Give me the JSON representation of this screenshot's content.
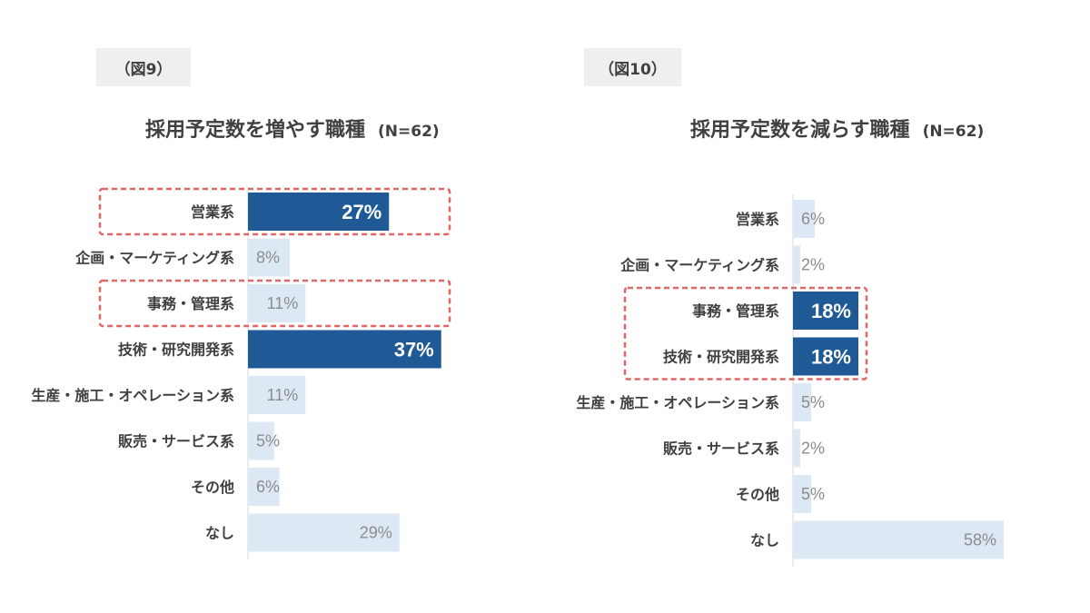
{
  "figures": [
    {
      "tag": "（図9）",
      "title": "採用予定数を増やす職種",
      "n_label": "(N=62)"
    },
    {
      "tag": "（図10）",
      "title": "採用予定数を減らす職種",
      "n_label": "(N=62)"
    }
  ],
  "colors": {
    "highlight": "#1f5a97",
    "normal": "#dde8f5",
    "callout": "#e06666",
    "label_dark": "#ffffff",
    "label_light": "#8c8c8c"
  },
  "chart_data": [
    {
      "type": "bar",
      "orientation": "horizontal",
      "title": "採用予定数を増やす職種",
      "categories": [
        "営業系",
        "企画・マーケティング系",
        "事務・管理系",
        "技術・研究開発系",
        "生産・施工・オペレーション系",
        "販売・サービス系",
        "その他",
        "なし"
      ],
      "values": [
        27,
        8,
        11,
        37,
        11,
        5,
        6,
        29
      ],
      "value_labels": [
        "27%",
        "8%",
        "11%",
        "37%",
        "11%",
        "5%",
        "6%",
        "29%"
      ],
      "highlighted": [
        0,
        3
      ],
      "callouts": [
        0,
        2
      ],
      "unit": "%",
      "xlim": [
        0,
        40
      ],
      "grid": false
    },
    {
      "type": "bar",
      "orientation": "horizontal",
      "title": "採用予定数を減らす職種",
      "categories": [
        "営業系",
        "企画・マーケティング系",
        "事務・管理系",
        "技術・研究開発系",
        "生産・施工・オペレーション系",
        "販売・サービス系",
        "その他",
        "なし"
      ],
      "values": [
        6,
        2,
        18,
        18,
        5,
        2,
        5,
        58
      ],
      "value_labels": [
        "6%",
        "2%",
        "18%",
        "18%",
        "5%",
        "2%",
        "5%",
        "58%"
      ],
      "highlighted": [
        2,
        3
      ],
      "callouts": [
        2,
        3
      ],
      "unit": "%",
      "xlim": [
        0,
        60
      ],
      "grid": false
    }
  ]
}
